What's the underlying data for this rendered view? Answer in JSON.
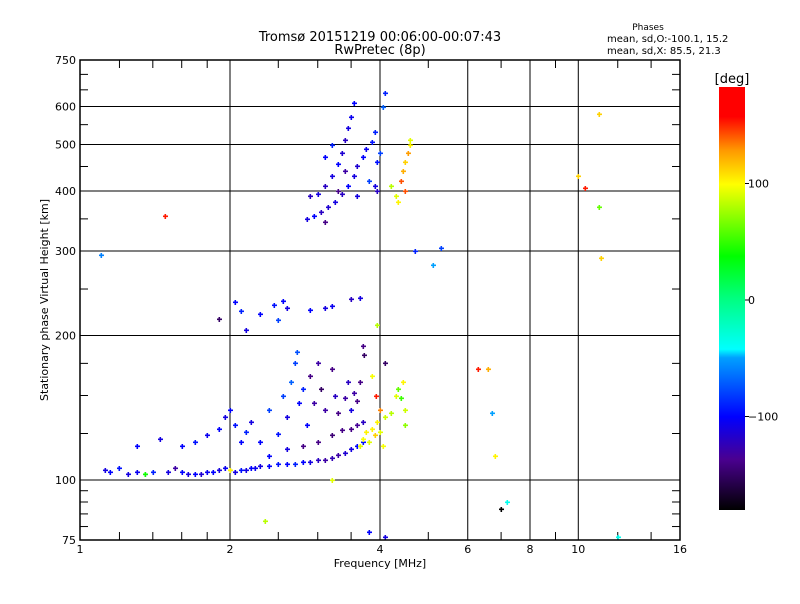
{
  "chart_data": {
    "type": "scatter",
    "title": "Tromsø 20151219 00:06:00-00:07:43",
    "subtitle": "RwPretec (8p)",
    "xlabel": "Frequency [MHz]",
    "ylabel": "Stationary phase Virtual Height [km]",
    "xscale": "log",
    "yscale": "log",
    "xlim": [
      1,
      16
    ],
    "ylim": [
      75,
      750
    ],
    "xticks": [
      1,
      2,
      4,
      6,
      8,
      10,
      16
    ],
    "yticks": [
      75,
      100,
      200,
      300,
      400,
      500,
      600,
      750
    ],
    "xgrid": [
      2,
      4,
      6,
      8,
      10
    ],
    "ygrid": [
      100,
      200,
      300,
      400,
      500,
      600
    ],
    "grid": true,
    "stats": {
      "heading": "Phases",
      "line_o": "mean, sd,O:-100.1, 15.2",
      "line_x": "mean, sd,X:  85.5, 21.3"
    },
    "colorbar": {
      "label": "[deg]",
      "range": [
        -180,
        180
      ],
      "ticks": [
        100,
        0,
        -100
      ],
      "tick_labels": [
        "100",
        "0",
        "−100"
      ]
    },
    "point_format": [
      "frequency_MHz",
      "height_km",
      "phase_deg"
    ],
    "points": [
      [
        1.12,
        105,
        -110
      ],
      [
        1.15,
        104,
        -100
      ],
      [
        1.2,
        106,
        -95
      ],
      [
        1.25,
        103,
        -110
      ],
      [
        1.3,
        104,
        -105
      ],
      [
        1.35,
        103,
        -120
      ],
      [
        1.4,
        104,
        -90
      ],
      [
        1.5,
        104,
        -110
      ],
      [
        1.55,
        106,
        -130
      ],
      [
        1.6,
        104,
        -100
      ],
      [
        1.65,
        103,
        -110
      ],
      [
        1.7,
        103,
        -100
      ],
      [
        1.75,
        103,
        -115
      ],
      [
        1.8,
        104,
        -105
      ],
      [
        1.85,
        104,
        -100
      ],
      [
        1.9,
        105,
        -110
      ],
      [
        1.95,
        106,
        -105
      ],
      [
        2.0,
        105,
        -100
      ],
      [
        2.05,
        104,
        -110
      ],
      [
        2.1,
        105,
        -95
      ],
      [
        2.15,
        105,
        -110
      ],
      [
        2.2,
        106,
        -100
      ],
      [
        2.25,
        106,
        -105
      ],
      [
        2.3,
        107,
        -110
      ],
      [
        2.4,
        107,
        -100
      ],
      [
        2.5,
        108,
        -95
      ],
      [
        2.6,
        108,
        -100
      ],
      [
        2.7,
        108,
        -90
      ],
      [
        2.8,
        109,
        -100
      ],
      [
        2.9,
        109,
        -110
      ],
      [
        3.0,
        110,
        -120
      ],
      [
        3.1,
        110,
        -130
      ],
      [
        3.2,
        111,
        -125
      ],
      [
        3.3,
        113,
        -130
      ],
      [
        3.4,
        114,
        -115
      ],
      [
        3.5,
        116,
        -110
      ],
      [
        3.6,
        118,
        -100
      ],
      [
        3.7,
        120,
        -95
      ],
      [
        2.4,
        112,
        -100
      ],
      [
        2.6,
        116,
        -110
      ],
      [
        2.8,
        118,
        -140
      ],
      [
        3.0,
        120,
        -140
      ],
      [
        3.2,
        124,
        -145
      ],
      [
        3.35,
        127,
        -140
      ],
      [
        3.5,
        128,
        -140
      ],
      [
        3.6,
        130,
        -135
      ],
      [
        3.7,
        132,
        -120
      ],
      [
        1.3,
        118,
        -100
      ],
      [
        1.45,
        122,
        -110
      ],
      [
        1.6,
        118,
        -100
      ],
      [
        1.7,
        120,
        -95
      ],
      [
        1.8,
        124,
        -105
      ],
      [
        1.9,
        128,
        -100
      ],
      [
        1.95,
        135,
        -110
      ],
      [
        2.0,
        140,
        -100
      ],
      [
        2.05,
        130,
        -95
      ],
      [
        2.1,
        120,
        -100
      ],
      [
        2.15,
        126,
        -90
      ],
      [
        2.2,
        132,
        -110
      ],
      [
        2.3,
        120,
        -100
      ],
      [
        2.4,
        140,
        -80
      ],
      [
        2.5,
        125,
        -95
      ],
      [
        2.55,
        150,
        -80
      ],
      [
        2.6,
        135,
        -110
      ],
      [
        2.65,
        160,
        -70
      ],
      [
        2.7,
        175,
        -80
      ],
      [
        2.72,
        185,
        -75
      ],
      [
        2.75,
        145,
        -100
      ],
      [
        2.8,
        155,
        -90
      ],
      [
        2.85,
        130,
        -100
      ],
      [
        2.9,
        165,
        -140
      ],
      [
        2.95,
        145,
        -130
      ],
      [
        3.0,
        175,
        -130
      ],
      [
        3.05,
        155,
        -150
      ],
      [
        3.1,
        140,
        -130
      ],
      [
        3.2,
        170,
        -140
      ],
      [
        3.25,
        150,
        -120
      ],
      [
        3.3,
        138,
        -140
      ],
      [
        3.4,
        148,
        -130
      ],
      [
        3.45,
        160,
        -120
      ],
      [
        3.5,
        140,
        -110
      ],
      [
        3.55,
        152,
        -130
      ],
      [
        3.6,
        146,
        -140
      ],
      [
        3.7,
        190,
        -140
      ],
      [
        3.72,
        182,
        -150
      ],
      [
        3.65,
        160,
        -140
      ],
      [
        3.65,
        118,
        90
      ],
      [
        3.7,
        122,
        95
      ],
      [
        3.75,
        126,
        100
      ],
      [
        3.8,
        120,
        90
      ],
      [
        3.85,
        128,
        100
      ],
      [
        3.9,
        124,
        110
      ],
      [
        3.95,
        132,
        100
      ],
      [
        4.0,
        126,
        90
      ],
      [
        4.0,
        140,
        130
      ],
      [
        4.05,
        118,
        95
      ],
      [
        4.1,
        135,
        85
      ],
      [
        4.2,
        138,
        80
      ],
      [
        4.3,
        150,
        90
      ],
      [
        4.35,
        155,
        60
      ],
      [
        4.4,
        148,
        50
      ],
      [
        4.45,
        160,
        100
      ],
      [
        4.5,
        140,
        85
      ],
      [
        4.5,
        130,
        70
      ],
      [
        3.92,
        150,
        150
      ],
      [
        3.85,
        165,
        95
      ],
      [
        2.05,
        235,
        -100
      ],
      [
        2.1,
        225,
        -90
      ],
      [
        2.15,
        205,
        -110
      ],
      [
        1.9,
        216,
        -150
      ],
      [
        2.3,
        222,
        -100
      ],
      [
        2.45,
        232,
        -95
      ],
      [
        2.55,
        236,
        -100
      ],
      [
        2.6,
        228,
        -110
      ],
      [
        2.5,
        215,
        -80
      ],
      [
        2.9,
        226,
        -100
      ],
      [
        3.1,
        228,
        -110
      ],
      [
        3.2,
        230,
        -105
      ],
      [
        3.5,
        238,
        -120
      ],
      [
        3.65,
        240,
        -110
      ],
      [
        3.95,
        210,
        80
      ],
      [
        2.85,
        350,
        -110
      ],
      [
        2.95,
        355,
        -100
      ],
      [
        3.05,
        362,
        -120
      ],
      [
        3.1,
        345,
        -140
      ],
      [
        3.15,
        370,
        -115
      ],
      [
        3.25,
        380,
        -110
      ],
      [
        3.35,
        395,
        -120
      ],
      [
        3.45,
        410,
        -100
      ],
      [
        3.55,
        430,
        -110
      ],
      [
        3.6,
        450,
        -115
      ],
      [
        3.7,
        470,
        -100
      ],
      [
        3.75,
        490,
        -105
      ],
      [
        3.85,
        505,
        -95
      ],
      [
        3.9,
        530,
        -90
      ],
      [
        2.9,
        390,
        -120
      ],
      [
        3.0,
        395,
        -110
      ],
      [
        3.1,
        410,
        -120
      ],
      [
        3.2,
        430,
        -110
      ],
      [
        3.3,
        455,
        -100
      ],
      [
        3.35,
        480,
        -115
      ],
      [
        3.4,
        510,
        -120
      ],
      [
        3.45,
        540,
        -110
      ],
      [
        3.5,
        570,
        -105
      ],
      [
        3.55,
        610,
        -100
      ],
      [
        3.2,
        500,
        -90
      ],
      [
        3.1,
        470,
        -100
      ],
      [
        3.3,
        400,
        -140
      ],
      [
        3.4,
        440,
        -130
      ],
      [
        3.6,
        390,
        -110
      ],
      [
        3.8,
        420,
        -80
      ],
      [
        3.95,
        460,
        -95
      ],
      [
        4.0,
        480,
        -80
      ],
      [
        4.05,
        600,
        -70
      ],
      [
        4.1,
        640,
        -90
      ],
      [
        3.9,
        410,
        -110
      ],
      [
        3.95,
        400,
        -120
      ],
      [
        4.4,
        420,
        140
      ],
      [
        4.45,
        440,
        120
      ],
      [
        4.5,
        460,
        110
      ],
      [
        4.55,
        480,
        125
      ],
      [
        4.6,
        500,
        100
      ],
      [
        4.5,
        400,
        140
      ],
      [
        4.3,
        390,
        90
      ],
      [
        4.35,
        380,
        100
      ],
      [
        4.6,
        510,
        90
      ],
      [
        4.2,
        410,
        80
      ],
      [
        1.1,
        295,
        -60
      ],
      [
        1.48,
        355,
        150
      ],
      [
        2.35,
        82,
        80
      ],
      [
        3.8,
        78,
        -100
      ],
      [
        4.1,
        76,
        -110
      ],
      [
        4.7,
        300,
        -90
      ],
      [
        5.1,
        280,
        -50
      ],
      [
        5.3,
        305,
        -80
      ],
      [
        4.1,
        175,
        -150
      ],
      [
        6.3,
        170,
        150
      ],
      [
        6.6,
        170,
        120
      ],
      [
        6.7,
        138,
        -50
      ],
      [
        7.0,
        87,
        -180
      ],
      [
        7.2,
        90,
        -40
      ],
      [
        6.8,
        112,
        100
      ],
      [
        10.0,
        430,
        110
      ],
      [
        10.3,
        405,
        150
      ],
      [
        11.0,
        580,
        110
      ],
      [
        11.0,
        370,
        60
      ],
      [
        11.1,
        290,
        110
      ],
      [
        12.0,
        76,
        -40
      ],
      [
        3.2,
        100,
        90
      ],
      [
        2.0,
        105,
        100
      ],
      [
        1.35,
        103,
        40
      ]
    ]
  }
}
